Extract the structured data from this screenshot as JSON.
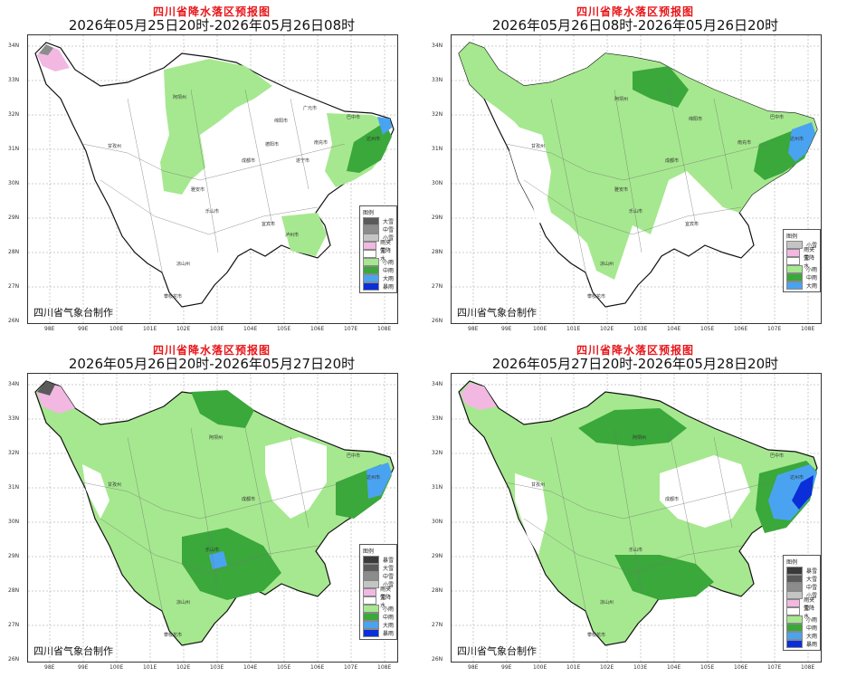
{
  "panels": [
    {
      "title": "四川省降水落区预报图",
      "subtitle": "2026年05月25日20时-2026年05月26日08时",
      "credit": "四川省气象台制作",
      "legend_title": "图例",
      "legend": [
        {
          "label": "大雪",
          "color": "#5a5a5a"
        },
        {
          "label": "中雪",
          "color": "#8c8c8c"
        },
        {
          "label": "小雪",
          "color": "#c4c4c4"
        },
        {
          "label": "雨夹雪",
          "color": "#f2b8e2"
        },
        {
          "label": "无降水",
          "color": "#ffffff"
        },
        {
          "label": "小雨",
          "color": "#a6e88f"
        },
        {
          "label": "中雨",
          "color": "#3aa83a"
        },
        {
          "label": "大雨",
          "color": "#4aa3f0"
        },
        {
          "label": "暴雨",
          "color": "#0a2fd8"
        }
      ]
    },
    {
      "title": "四川省降水落区预报图",
      "subtitle": "2026年05月26日08时-2026年05月26日20时",
      "credit": "四川省气象台制作",
      "legend_title": "图例",
      "legend": [
        {
          "label": "小雪",
          "color": "#c4c4c4"
        },
        {
          "label": "雨夹雪",
          "color": "#f2b8e2"
        },
        {
          "label": "无降水",
          "color": "#ffffff"
        },
        {
          "label": "小雨",
          "color": "#a6e88f"
        },
        {
          "label": "中雨",
          "color": "#3aa83a"
        },
        {
          "label": "大雨",
          "color": "#4aa3f0"
        }
      ]
    },
    {
      "title": "四川省降水落区预报图",
      "subtitle": "2026年05月26日20时-2026年05月27日20时",
      "credit": "四川省气象台制作",
      "legend_title": "图例",
      "legend": [
        {
          "label": "暴雪",
          "color": "#3a3a3a"
        },
        {
          "label": "大雪",
          "color": "#5a5a5a"
        },
        {
          "label": "中雪",
          "color": "#8c8c8c"
        },
        {
          "label": "小雪",
          "color": "#c4c4c4"
        },
        {
          "label": "雨夹雪",
          "color": "#f2b8e2"
        },
        {
          "label": "无降水",
          "color": "#ffffff"
        },
        {
          "label": "小雨",
          "color": "#a6e88f"
        },
        {
          "label": "中雨",
          "color": "#3aa83a"
        },
        {
          "label": "大雨",
          "color": "#4aa3f0"
        },
        {
          "label": "暴雨",
          "color": "#0a2fd8"
        }
      ]
    },
    {
      "title": "四川省降水落区预报图",
      "subtitle": "2026年05月27日20时-2026年05月28日20时",
      "credit": "四川省气象台制作",
      "legend_title": "图例",
      "legend": [
        {
          "label": "暴雪",
          "color": "#3a3a3a"
        },
        {
          "label": "大雪",
          "color": "#5a5a5a"
        },
        {
          "label": "中雪",
          "color": "#8c8c8c"
        },
        {
          "label": "小雪",
          "color": "#c4c4c4"
        },
        {
          "label": "雨夹雪",
          "color": "#f2b8e2"
        },
        {
          "label": "无降水",
          "color": "#ffffff"
        },
        {
          "label": "小雨",
          "color": "#a6e88f"
        },
        {
          "label": "中雨",
          "color": "#3aa83a"
        },
        {
          "label": "大雨",
          "color": "#4aa3f0"
        },
        {
          "label": "暴雨",
          "color": "#0a2fd8"
        }
      ]
    }
  ],
  "lat_labels": [
    "34N",
    "33N",
    "32N",
    "31N",
    "30N",
    "29N",
    "28N",
    "27N",
    "26N"
  ],
  "lon_labels": [
    "98E",
    "99E",
    "100E",
    "101E",
    "102E",
    "103E",
    "104E",
    "105E",
    "106E",
    "107E",
    "108E"
  ],
  "city_labels": [
    "阿坝州",
    "甘孜州",
    "成都市",
    "德阳市",
    "绵阳市",
    "广元市",
    "巴中市",
    "达州市",
    "南充市",
    "遂宁市",
    "资阳市",
    "内江市",
    "自贡市",
    "眉山市",
    "乐山市",
    "雅安市",
    "宜宾市",
    "泸州市",
    "凉山州",
    "攀枝花市",
    "广安市"
  ]
}
